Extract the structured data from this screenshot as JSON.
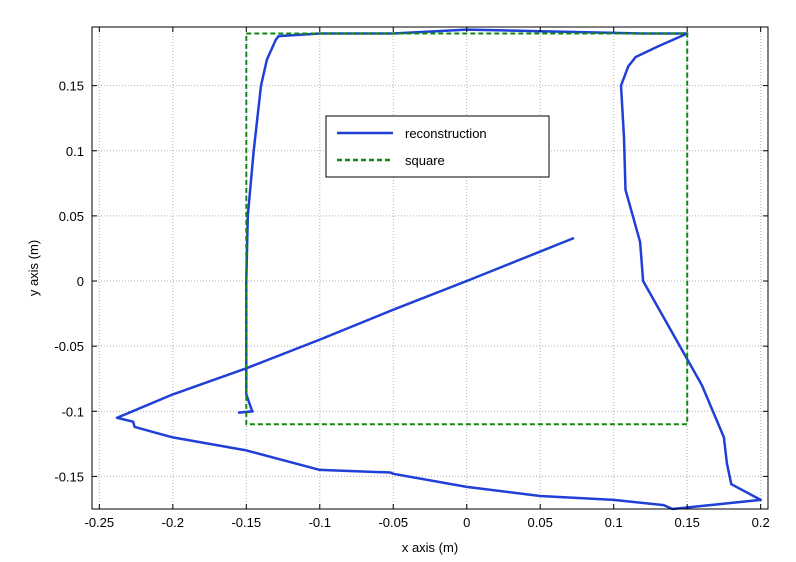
{
  "chart_data": {
    "type": "line",
    "xlabel": "x axis (m)",
    "ylabel": "y axis (m)",
    "xlim": [
      -0.255,
      0.205
    ],
    "ylim": [
      -0.175,
      0.195
    ],
    "x_ticks": [
      -0.25,
      -0.2,
      -0.15,
      -0.1,
      -0.05,
      0,
      0.05,
      0.1,
      0.15,
      0.2
    ],
    "x_tick_labels": [
      "-0.25",
      "-0.2",
      "-0.15",
      "-0.1",
      "-0.05",
      "0",
      "0.05",
      "0.1",
      "0.15",
      "0.2"
    ],
    "y_ticks": [
      -0.15,
      -0.1,
      -0.05,
      0,
      0.05,
      0.1,
      0.15
    ],
    "y_tick_labels": [
      "-0.15",
      "-0.1",
      "-0.05",
      "0",
      "0.05",
      "0.1",
      "0.15"
    ],
    "grid": true,
    "legend_position": "upper-center",
    "legend": [
      {
        "label": "reconstruction",
        "style": "solid",
        "color": "#1f3fd6"
      },
      {
        "label": "square",
        "style": "dashed",
        "color": "#118a11"
      }
    ],
    "series": [
      {
        "name": "reconstruction",
        "style": "solid",
        "color": "#1f3fd6",
        "x": [
          0.073,
          0.0,
          -0.05,
          -0.1,
          -0.15,
          -0.2,
          -0.238,
          -0.227,
          -0.226,
          -0.2,
          -0.15,
          -0.1,
          -0.052,
          -0.05,
          0.0,
          0.05,
          0.1,
          0.134,
          0.14,
          0.2,
          0.18,
          0.177,
          0.175,
          0.16,
          0.14,
          0.12,
          0.118,
          0.108,
          0.107,
          0.105,
          0.11,
          0.115,
          0.13,
          0.15,
          0.13,
          0.12,
          0.0,
          -0.05,
          -0.1,
          -0.128,
          -0.13,
          -0.136,
          -0.14,
          -0.145,
          -0.149,
          -0.15,
          -0.15,
          -0.146,
          -0.155,
          -0.145
        ],
        "y": [
          0.033,
          0.0,
          -0.022,
          -0.045,
          -0.067,
          -0.087,
          -0.105,
          -0.108,
          -0.112,
          -0.12,
          -0.13,
          -0.145,
          -0.147,
          -0.148,
          -0.158,
          -0.165,
          -0.168,
          -0.172,
          -0.175,
          -0.168,
          -0.156,
          -0.14,
          -0.12,
          -0.08,
          -0.04,
          0.0,
          0.03,
          0.07,
          0.11,
          0.15,
          0.165,
          0.172,
          0.18,
          0.19,
          0.19,
          0.19,
          0.193,
          0.19,
          0.19,
          0.188,
          0.185,
          0.17,
          0.15,
          0.1,
          0.05,
          0.0,
          -0.087,
          -0.1,
          -0.101,
          -0.1
        ]
      },
      {
        "name": "square",
        "style": "dashed",
        "color": "#118a11",
        "x": [
          -0.15,
          0.15,
          0.15,
          -0.15,
          -0.15
        ],
        "y": [
          0.19,
          0.19,
          -0.11,
          -0.11,
          0.19
        ]
      }
    ]
  }
}
